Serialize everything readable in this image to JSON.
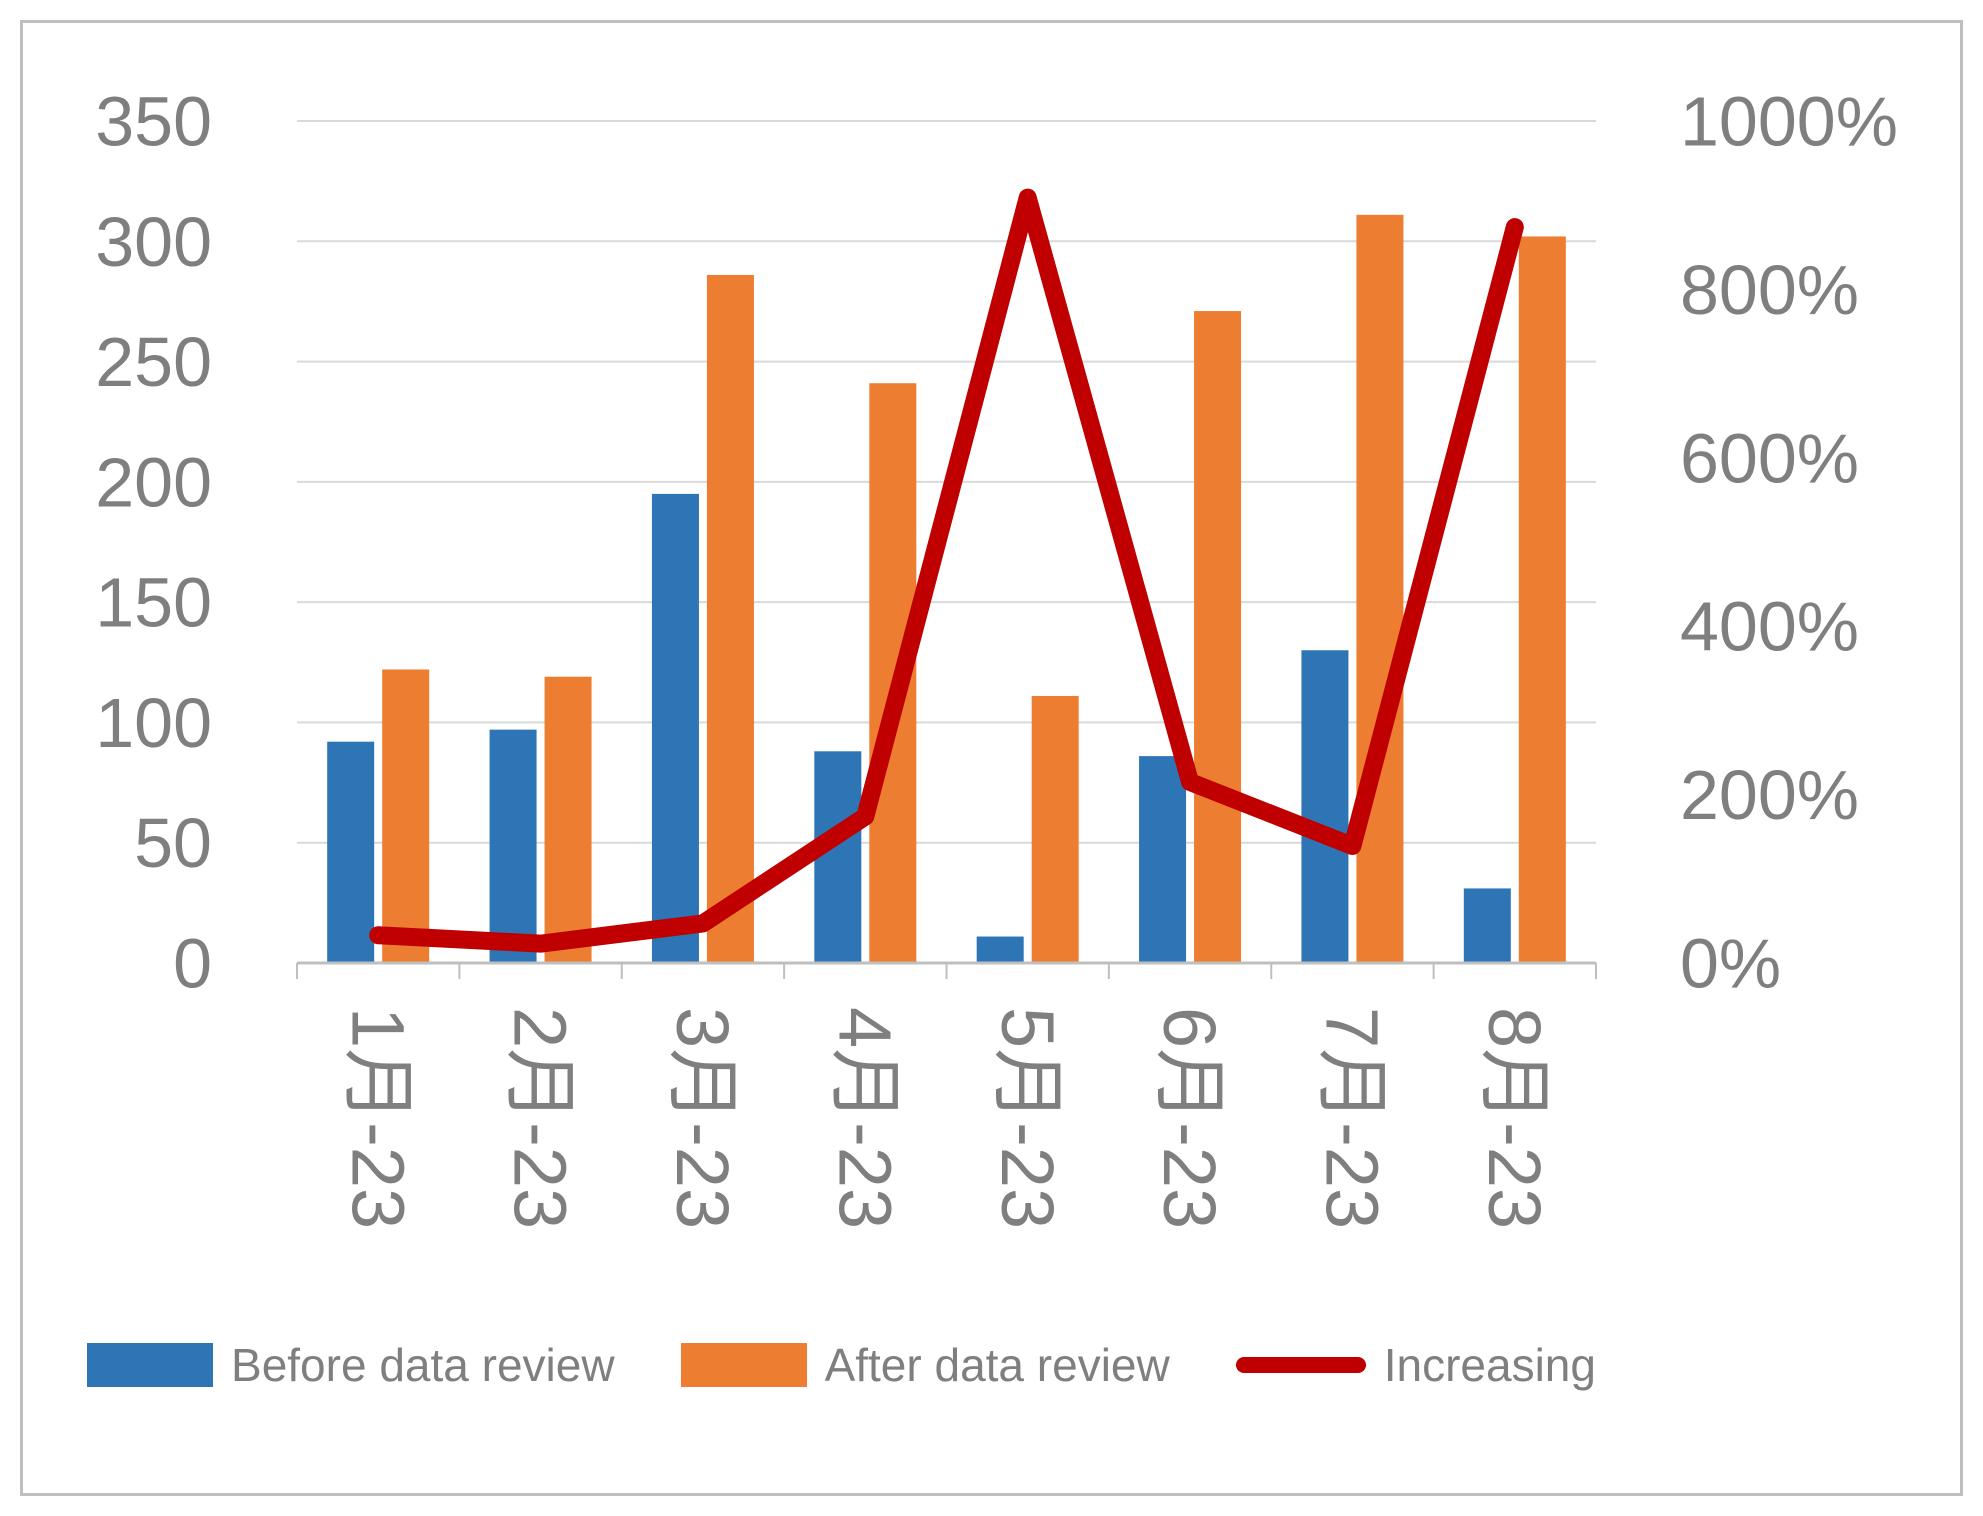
{
  "chart_data": {
    "type": "bar+line",
    "title": "",
    "categories": [
      "1月-23",
      "2月-23",
      "3月-23",
      "4月-23",
      "5月-23",
      "6月-23",
      "7月-23",
      "8月-23"
    ],
    "series": [
      {
        "name": "Before data review",
        "type": "bar",
        "axis": "left",
        "color": "#2E75B6",
        "values": [
          92,
          97,
          195,
          88,
          11,
          86,
          130,
          31
        ]
      },
      {
        "name": "After data review",
        "type": "bar",
        "axis": "left",
        "color": "#ED7D31",
        "values": [
          122,
          119,
          286,
          241,
          111,
          271,
          311,
          302
        ]
      },
      {
        "name": "Increasing",
        "type": "line",
        "axis": "right",
        "unit": "%",
        "color": "#C00000",
        "values": [
          33,
          23,
          47,
          174,
          909,
          215,
          139,
          874
        ]
      }
    ],
    "left_axis": {
      "min": 0,
      "max": 350,
      "step": 50,
      "ticks": [
        "0",
        "50",
        "100",
        "150",
        "200",
        "250",
        "300",
        "350"
      ]
    },
    "right_axis": {
      "min": 0,
      "max": 1000,
      "step": 200,
      "ticks": [
        "0%",
        "200%",
        "400%",
        "600%",
        "800%",
        "1000%"
      ]
    },
    "legend": {
      "position": "bottom",
      "entries": [
        "Before data review",
        "After data review",
        "Increasing"
      ]
    },
    "grid": true
  },
  "colors": {
    "gridline": "#D9D9D9",
    "axis": "#BFBFBF",
    "tick_label": "#7F7F7F",
    "frame_border": "#BFBFBF",
    "background": "#FFFFFF"
  }
}
